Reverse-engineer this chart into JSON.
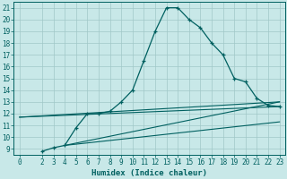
{
  "xlabel": "Humidex (Indice chaleur)",
  "bg_color": "#c8e8e8",
  "grid_color": "#a0c8c8",
  "line_color": "#006060",
  "xlim": [
    -0.5,
    23.5
  ],
  "ylim": [
    8.5,
    21.5
  ],
  "xticks": [
    0,
    2,
    3,
    4,
    5,
    6,
    7,
    8,
    9,
    10,
    11,
    12,
    13,
    14,
    15,
    16,
    17,
    18,
    19,
    20,
    21,
    22,
    23
  ],
  "yticks": [
    9,
    10,
    11,
    12,
    13,
    14,
    15,
    16,
    17,
    18,
    19,
    20,
    21
  ],
  "curve1_x": [
    2,
    3,
    4,
    5,
    6,
    7,
    8,
    9,
    10,
    11,
    12,
    13,
    14,
    15,
    16,
    17,
    18,
    19,
    20,
    21,
    22,
    23
  ],
  "curve1_y": [
    8.8,
    9.1,
    9.3,
    10.8,
    12.0,
    12.0,
    12.2,
    13.0,
    14.0,
    16.5,
    19.0,
    21.0,
    21.0,
    20.0,
    19.3,
    18.0,
    17.0,
    15.0,
    14.7,
    13.3,
    12.7,
    12.6
  ],
  "line1_x": [
    0,
    23
  ],
  "line1_y": [
    11.7,
    12.6
  ],
  "line2_x": [
    0,
    23
  ],
  "line2_y": [
    11.7,
    13.0
  ],
  "line3_x": [
    4,
    23
  ],
  "line3_y": [
    9.3,
    13.0
  ],
  "line4_x": [
    4,
    23
  ],
  "line4_y": [
    9.3,
    11.3
  ]
}
